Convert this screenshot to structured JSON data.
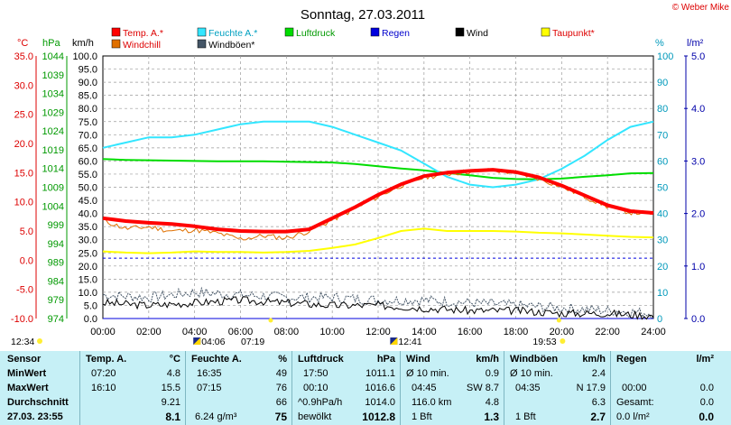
{
  "title": "Sonntag, 27.03.2011",
  "credit": "© Weber Mike",
  "legend": {
    "temp": "Temp. A.*",
    "humidity": "Feuchte A.*",
    "pressure": "Luftdruck",
    "rain": "Regen",
    "wind": "Wind",
    "dewpoint": "Taupunkt*",
    "windchill": "Windchill",
    "gusts": "Windböen*"
  },
  "axis_units": {
    "celsius": "°C",
    "hpa": "hPa",
    "kmh": "km/h",
    "percent": "%",
    "rain": "l/m²"
  },
  "colors": {
    "temp": "#ff0000",
    "humidity": "#33e6ff",
    "pressure": "#00dd00",
    "rain": "#0000dd",
    "wind": "#000000",
    "dewpoint": "#ffff00",
    "windchill": "#e07000",
    "gusts": "#445566"
  },
  "events": {
    "sunrise": "04:06",
    "sunset": "19:53",
    "moonrise": "12:34",
    "moon_other": "07:19",
    "moon_phase": "12:41"
  },
  "stats": {
    "row_labels": [
      "Sensor",
      "MinWert",
      "MaxWert",
      "Durchschnitt",
      "27.03. 23:55"
    ],
    "temp": {
      "header": "Temp. A.",
      "unit": "°C",
      "min_t": "07:20",
      "min": "4.8",
      "max_t": "16:10",
      "max": "15.5",
      "avg": "9.21",
      "cur": "8.1"
    },
    "humidity": {
      "header": "Feuchte A.",
      "unit": "%",
      "min_t": "16:35",
      "min": "49",
      "max_t": "07:15",
      "max": "76",
      "avg": "66",
      "cur_abs": "6.24 g/m³",
      "cur": "75"
    },
    "pressure": {
      "header": "Luftdruck",
      "unit": "hPa",
      "min_t": "17:50",
      "min": "1011.1",
      "max_t": "00:10",
      "max": "1016.6",
      "trend": "^0.9hPa/h",
      "avg": "1014.0",
      "sky": "bewölkt",
      "cur": "1012.8"
    },
    "wind": {
      "header": "Wind",
      "unit": "km/h",
      "r1_label": "Ø 10 min.",
      "r1": "0.9",
      "r2_time": "04:45",
      "r2": "SW 8.7",
      "r3_label": "116.0 km",
      "r3": "4.8",
      "r4_label": "1 Bft",
      "cur": "1.3"
    },
    "gusts": {
      "header": "Windböen",
      "unit": "km/h",
      "r1_label": "Ø 10 min.",
      "r1": "2.4",
      "r2_time": "04:35",
      "r2": "N 17.9",
      "r3": "6.3",
      "r4_label": "1 Bft",
      "cur": "2.7"
    },
    "rain": {
      "header": "Regen",
      "unit": "l/m²",
      "r2_time": "00:00",
      "r2": "0.0",
      "r3_label": "Gesamt:",
      "r3": "0.0",
      "r4_label": "0.0 l/m²",
      "cur": "0.0"
    }
  },
  "chart_data": {
    "type": "line",
    "title": "Sonntag, 27.03.2011",
    "x_ticks": [
      "00:00",
      "02:00",
      "04:00",
      "06:00",
      "08:00",
      "10:00",
      "12:00",
      "14:00",
      "16:00",
      "18:00",
      "20:00",
      "22:00",
      "24:00"
    ],
    "x_range_hours": [
      0,
      24
    ],
    "axes": {
      "celsius": {
        "range": [
          -10,
          35
        ],
        "ticks": [
          "35.0",
          "30.0",
          "25.0",
          "20.0",
          "15.0",
          "10.0",
          "5.0",
          "0.0",
          "-5.0",
          "-10.0"
        ]
      },
      "hpa": {
        "range": [
          974,
          1044
        ],
        "ticks": [
          "1044",
          "1039",
          "1034",
          "1029",
          "1024",
          "1019",
          "1014",
          "1009",
          "1004",
          "999",
          "994",
          "989",
          "984",
          "979",
          "974"
        ]
      },
      "kmh": {
        "range": [
          0,
          100
        ],
        "ticks": [
          "100.0",
          "95.0",
          "90.0",
          "85.0",
          "80.0",
          "75.0",
          "70.0",
          "65.0",
          "60.0",
          "55.0",
          "50.0",
          "45.0",
          "40.0",
          "35.0",
          "30.0",
          "25.0",
          "20.0",
          "15.0",
          "10.0",
          "5.0",
          "0.0"
        ]
      },
      "percent": {
        "range": [
          0,
          100
        ],
        "ticks": [
          "100",
          "90",
          "80",
          "70",
          "60",
          "50",
          "40",
          "30",
          "20",
          "10",
          "0"
        ]
      },
      "rain": {
        "range": [
          0,
          5
        ],
        "ticks": [
          "5.0",
          "4.0",
          "3.0",
          "2.0",
          "1.0",
          "0.0"
        ]
      }
    },
    "grid": true,
    "series": [
      {
        "name": "Temp. A.*",
        "axis": "celsius",
        "x": [
          0,
          1,
          2,
          3,
          4,
          5,
          6,
          7,
          8,
          9,
          10,
          11,
          12,
          13,
          14,
          15,
          16,
          17,
          18,
          19,
          20,
          21,
          22,
          23,
          24
        ],
        "values": [
          7.2,
          6.7,
          6.4,
          6.2,
          5.8,
          5.3,
          5.0,
          4.9,
          4.9,
          5.3,
          7.2,
          9.1,
          11.2,
          13.0,
          14.4,
          15.0,
          15.3,
          15.5,
          15.1,
          14.2,
          12.8,
          11.1,
          9.4,
          8.4,
          8.1
        ]
      },
      {
        "name": "Windchill",
        "axis": "celsius",
        "x": [
          0,
          1,
          2,
          3,
          4,
          5,
          6,
          7,
          8,
          9,
          10,
          11,
          12,
          13,
          14,
          15,
          16,
          17,
          18,
          19,
          20,
          21,
          22,
          23,
          24
        ],
        "values": [
          6.8,
          5.4,
          5.7,
          5.0,
          5.2,
          4.6,
          3.6,
          4.2,
          3.8,
          5.0,
          6.9,
          8.8,
          10.9,
          12.8,
          14.2,
          14.8,
          15.2,
          15.4,
          15.0,
          14.0,
          12.6,
          10.9,
          9.2,
          8.2,
          8.0
        ]
      },
      {
        "name": "Feuchte A.*",
        "axis": "percent",
        "x": [
          0,
          1,
          2,
          3,
          4,
          5,
          6,
          7,
          8,
          9,
          10,
          11,
          12,
          13,
          14,
          15,
          16,
          17,
          18,
          19,
          20,
          21,
          22,
          23,
          24
        ],
        "values": [
          65,
          67,
          69,
          69,
          70,
          72,
          74,
          75,
          75,
          75,
          73,
          70,
          67,
          64,
          59,
          54,
          51,
          50,
          51,
          53,
          57,
          62,
          68,
          73,
          75
        ]
      },
      {
        "name": "Luftdruck",
        "axis": "hpa",
        "x": [
          0,
          1,
          2,
          3,
          4,
          5,
          6,
          7,
          8,
          9,
          10,
          11,
          12,
          13,
          14,
          15,
          16,
          17,
          18,
          19,
          20,
          21,
          22,
          23,
          24
        ],
        "values": [
          1016.5,
          1016.3,
          1016.2,
          1016.1,
          1016.0,
          1015.9,
          1015.9,
          1015.9,
          1015.8,
          1015.7,
          1015.6,
          1015.2,
          1014.6,
          1014.0,
          1013.5,
          1012.8,
          1012.2,
          1011.5,
          1011.2,
          1011.1,
          1011.3,
          1011.8,
          1012.2,
          1012.7,
          1012.8
        ]
      },
      {
        "name": "Taupunkt*",
        "axis": "celsius",
        "x": [
          0,
          1,
          2,
          3,
          4,
          5,
          6,
          7,
          8,
          9,
          10,
          11,
          12,
          13,
          14,
          15,
          16,
          17,
          18,
          19,
          20,
          21,
          22,
          23,
          24
        ],
        "values": [
          1.5,
          1.3,
          1.2,
          1.3,
          1.5,
          1.4,
          1.4,
          1.3,
          1.4,
          1.6,
          2.1,
          2.7,
          3.8,
          5.0,
          5.4,
          5.0,
          5.0,
          5.0,
          4.9,
          4.7,
          4.6,
          4.4,
          4.2,
          4.0,
          3.9
        ]
      },
      {
        "name": "Wind",
        "axis": "kmh",
        "x": [
          0,
          2,
          4,
          6,
          8,
          10,
          12,
          14,
          16,
          18,
          20,
          22,
          24
        ],
        "values": [
          6,
          5,
          6,
          7,
          6,
          5,
          5,
          4,
          3,
          3,
          2,
          2,
          1
        ]
      },
      {
        "name": "Windböen*",
        "axis": "kmh",
        "x": [
          0,
          2,
          4,
          6,
          8,
          10,
          12,
          14,
          16,
          18,
          20,
          22,
          24
        ],
        "values": [
          9,
          8,
          10,
          9,
          8,
          8,
          7,
          7,
          6,
          5,
          4,
          3,
          2
        ]
      },
      {
        "name": "Regen",
        "axis": "rain",
        "x": [
          0,
          24
        ],
        "values": [
          0,
          0
        ]
      }
    ],
    "reference_line": {
      "axis": "rain",
      "value": 1.15
    }
  }
}
